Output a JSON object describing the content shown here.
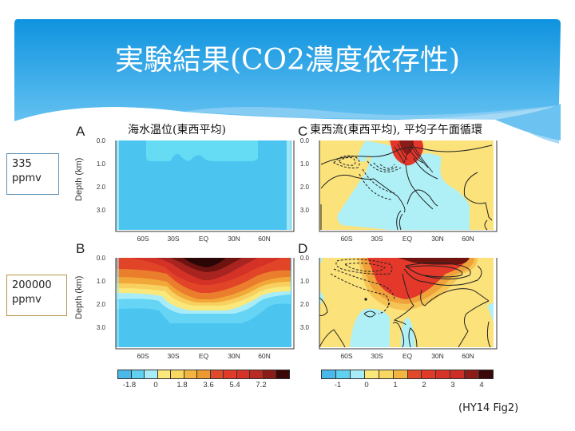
{
  "slide": {
    "title": "実験結果(CO2濃度依存性)",
    "credit": "(HY14 Fig2)",
    "accent_color": "#1a9ae0"
  },
  "row_labels": [
    {
      "concentration": "335",
      "unit": "ppmv"
    },
    {
      "concentration": "200000",
      "unit": "ppmv"
    }
  ],
  "columns": [
    {
      "title": "海水温位(東西平均)"
    },
    {
      "title": "東西流(東西平均), 平均子午面循環"
    }
  ],
  "chart_data": [
    {
      "type": "heatmap",
      "panel": "A",
      "title": "海水温位(東西平均)",
      "xlabel": "",
      "ylabel": "Depth (km)",
      "x_ticks": [
        "60S",
        "30S",
        "EQ",
        "30N",
        "60N"
      ],
      "y_ticks": [
        "0.0",
        "1.0",
        "2.0",
        "3.0"
      ],
      "ylim": [
        3.8,
        0.0
      ],
      "description": "Nearly uniform cold (~-1.8 to 0) water; slightly warmer (0 to -0.9) layer in top ~0.7 km between 55S and 55N"
    },
    {
      "type": "heatmap",
      "panel": "C",
      "title": "東西流(東西平均), 平均子午面循環",
      "xlabel": "",
      "ylabel": "",
      "x_ticks": [
        "60S",
        "30S",
        "EQ",
        "30N",
        "60N"
      ],
      "y_ticks": [
        "0.0",
        "1.0",
        "2.0",
        "3.0"
      ],
      "ylim": [
        3.8,
        0.0
      ],
      "description": "Strong eastward jet (up to ~4) near EQ surface, westward flow (cyan) below 1 km between 40S and 40N, contours of meridional overturning streamfunction"
    },
    {
      "type": "heatmap",
      "panel": "B",
      "title": "",
      "xlabel": "",
      "ylabel": "Depth (km)",
      "x_ticks": [
        "60S",
        "30S",
        "EQ",
        "30N",
        "60N"
      ],
      "y_ticks": [
        "0.0",
        "1.0",
        "2.0",
        "3.0"
      ],
      "ylim": [
        3.8,
        0.0
      ],
      "description": "Very warm surface (>7.2) near EQ, warm layer deepening to ~2.2 km at EQ and ~1.5 km at high latitudes, cold deep water below"
    },
    {
      "type": "heatmap",
      "panel": "D",
      "title": "",
      "xlabel": "",
      "ylabel": "",
      "x_ticks": [
        "60S",
        "30S",
        "EQ",
        "30N",
        "60N"
      ],
      "y_ticks": [
        "0.0",
        "1.0",
        "2.0",
        "3.0"
      ],
      "ylim": [
        3.8,
        0.0
      ],
      "description": "Broad eastward flow (red) in top 1.5 km from 30S to 40N with strong overturning contours; weak flow below"
    },
    {
      "type": "colorbar",
      "panel": "A/B",
      "tick_labels": [
        "-1.8",
        "0",
        "1.8",
        "3.6",
        "5.4",
        "7.2"
      ],
      "colors": [
        "#4ab8e8",
        "#5fd0f0",
        "#a8ecf8",
        "#fbe87a",
        "#f8d860",
        "#f2b540",
        "#ec9a30",
        "#e04a2a",
        "#e03a28",
        "#d63228",
        "#b82a22",
        "#8c1c18",
        "#3a0808"
      ]
    },
    {
      "type": "colorbar",
      "panel": "C/D",
      "tick_labels": [
        "-1",
        "0",
        "1",
        "2",
        "3",
        "4"
      ],
      "colors": [
        "#4ab8e8",
        "#5fd0f0",
        "#a8ecf8",
        "#fbe87a",
        "#f8d860",
        "#f2b540",
        "#e04a2a",
        "#e03a28",
        "#d63228",
        "#cc2e26",
        "#8c1c18",
        "#3a0808"
      ]
    }
  ],
  "panels": {
    "a": {
      "letter": "A"
    },
    "b": {
      "letter": "B"
    },
    "c": {
      "letter": "C"
    },
    "d": {
      "letter": "D"
    }
  },
  "axis": {
    "ylabel": "Depth (km)",
    "x_ticks": [
      "60S",
      "30S",
      "EQ",
      "30N",
      "60N"
    ],
    "y_ticks": [
      "0.0",
      "1.0",
      "2.0",
      "3.0"
    ]
  },
  "colorbar_temp": {
    "ticks": [
      "-1.8",
      "0",
      "1.8",
      "3.6",
      "5.4",
      "7.2"
    ]
  },
  "colorbar_flow": {
    "ticks": [
      "-1",
      "0",
      "1",
      "2",
      "3",
      "4"
    ]
  }
}
